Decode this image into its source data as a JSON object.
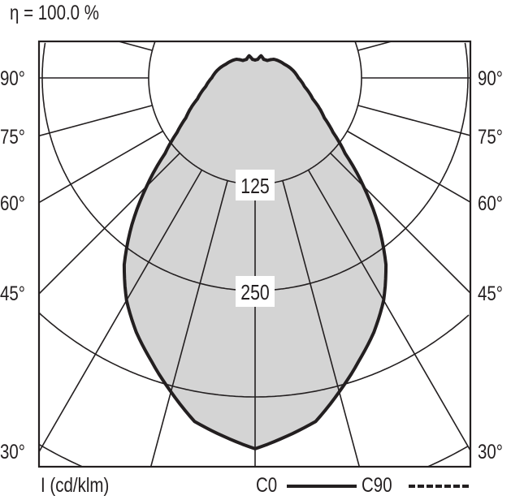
{
  "chart_data": {
    "type": "polar",
    "title": "η = 100.0 %",
    "unit_label": "I (cd/klm)",
    "radial_ticks": [
      125,
      250,
      375,
      500
    ],
    "radial_tick_labels": [
      "125",
      "250"
    ],
    "angle_labels": [
      "90°",
      "75°",
      "60°",
      "45°",
      "30°"
    ],
    "angle_lines_deg": [
      0,
      15,
      30,
      45,
      60,
      75,
      90,
      105
    ],
    "grid": true,
    "fill_color": "#d4d4d4",
    "line_color": "#231f20",
    "legend": [
      {
        "name": "C0",
        "style": "solid"
      },
      {
        "name": "C90",
        "style": "dashed"
      }
    ],
    "series": [
      {
        "name": "C0",
        "angles_deg": [
          0,
          10,
          15,
          20,
          25,
          30,
          35,
          40,
          45,
          50,
          55,
          60,
          70,
          80,
          90,
          100,
          115,
          135,
          145,
          155,
          165,
          172,
          180
        ],
        "values": [
          436,
          410,
          382,
          355,
          330,
          302,
          268,
          225,
          180,
          138,
          112,
          94,
          72,
          59,
          51,
          46,
          38,
          31,
          25,
          24,
          27,
          22,
          21
        ]
      }
    ]
  }
}
